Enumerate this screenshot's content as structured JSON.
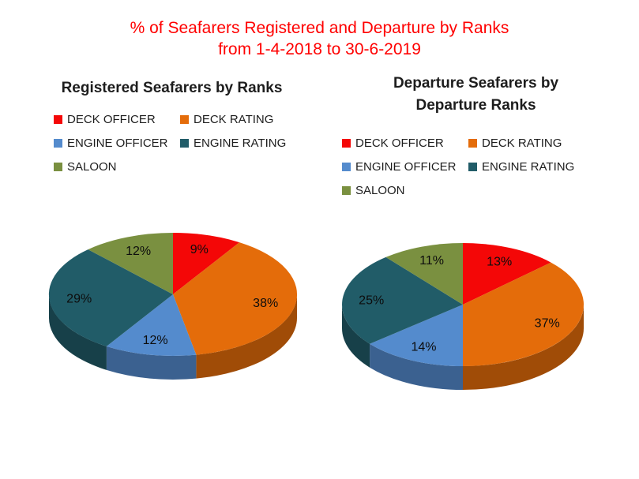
{
  "main_title": {
    "line1": "% of Seafarers Registered and Departure by Ranks",
    "line2": "from 1-4-2018 to 30-6-2019",
    "color": "#ff0000"
  },
  "chart_data": [
    {
      "type": "pie",
      "style": "3d",
      "title": "Registered Seafarers by Ranks",
      "title_lines": [
        "Registered Seafarers by Ranks"
      ],
      "categories": [
        "DECK OFFICER",
        "DECK RATING",
        "ENGINE OFFICER",
        "ENGINE RATING",
        "SALOON"
      ],
      "values": [
        9,
        38,
        12,
        29,
        12
      ],
      "unit": "%",
      "colors": [
        "#f40707",
        "#e46c0a",
        "#548bcd",
        "#215c68",
        "#7a9040"
      ],
      "legend_position": "top",
      "start_angle_deg": 0,
      "direction": "clockwise"
    },
    {
      "type": "pie",
      "style": "3d",
      "title": "Departure Seafarers by Departure Ranks",
      "title_lines": [
        "Departure Seafarers by",
        "Departure Ranks"
      ],
      "categories": [
        "DECK OFFICER",
        "DECK RATING",
        "ENGINE OFFICER",
        "ENGINE RATING",
        "SALOON"
      ],
      "values": [
        13,
        37,
        14,
        25,
        11
      ],
      "unit": "%",
      "colors": [
        "#f40707",
        "#e46c0a",
        "#548bcd",
        "#215c68",
        "#7a9040"
      ],
      "legend_position": "top",
      "start_angle_deg": 0,
      "direction": "clockwise"
    }
  ]
}
